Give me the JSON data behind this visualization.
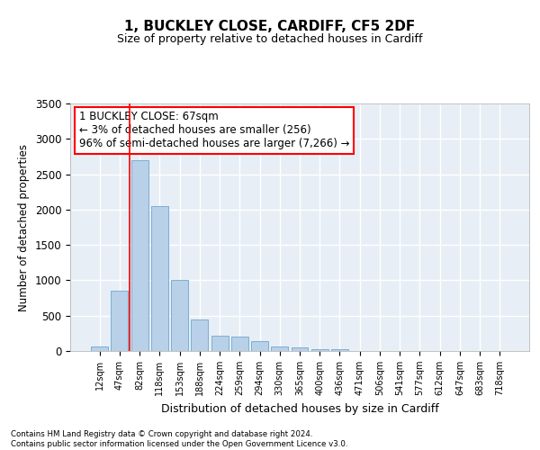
{
  "title1": "1, BUCKLEY CLOSE, CARDIFF, CF5 2DF",
  "title2": "Size of property relative to detached houses in Cardiff",
  "xlabel": "Distribution of detached houses by size in Cardiff",
  "ylabel": "Number of detached properties",
  "bar_categories": [
    "12sqm",
    "47sqm",
    "82sqm",
    "118sqm",
    "153sqm",
    "188sqm",
    "224sqm",
    "259sqm",
    "294sqm",
    "330sqm",
    "365sqm",
    "400sqm",
    "436sqm",
    "471sqm",
    "506sqm",
    "541sqm",
    "577sqm",
    "612sqm",
    "647sqm",
    "683sqm",
    "718sqm"
  ],
  "bar_values": [
    65,
    850,
    2700,
    2050,
    1000,
    450,
    220,
    210,
    135,
    65,
    55,
    30,
    25,
    5,
    0,
    0,
    0,
    0,
    0,
    0,
    0
  ],
  "bar_color": "#b8d0e8",
  "bar_edge_color": "#7aafd4",
  "vline_x": 1.5,
  "vline_color": "red",
  "annotation_text": "1 BUCKLEY CLOSE: 67sqm\n← 3% of detached houses are smaller (256)\n96% of semi-detached houses are larger (7,266) →",
  "annotation_box_color": "white",
  "annotation_box_edge_color": "red",
  "ylim": [
    0,
    3500
  ],
  "yticks": [
    0,
    500,
    1000,
    1500,
    2000,
    2500,
    3000,
    3500
  ],
  "background_color": "#e8eef5",
  "grid_color": "white",
  "footer1": "Contains HM Land Registry data © Crown copyright and database right 2024.",
  "footer2": "Contains public sector information licensed under the Open Government Licence v3.0."
}
